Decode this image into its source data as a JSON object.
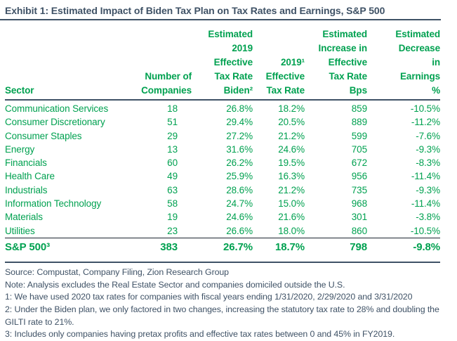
{
  "title": "Exhibit 1: Estimated Impact of Biden Tax Plan on Tax Rates and Earnings, S&P 500",
  "colors": {
    "accent_green": "#00A150",
    "navy": "#3F5266",
    "dark_divider": "#1c2430",
    "background": "#ffffff"
  },
  "table": {
    "headers": [
      "Sector",
      "Number of\nCompanies",
      "Estimated\n2019\nEffective\nTax Rate\nBiden²",
      "2019¹\nEffective\nTax Rate",
      "Estimated\nIncrease in\nEffective\nTax Rate\nBps",
      "Estimated\nDecrease\nin\nEarnings\n%"
    ],
    "rows": [
      [
        "Communication Services",
        "18",
        "26.8%",
        "18.2%",
        "859",
        "-10.5%"
      ],
      [
        "Consumer Discretionary",
        "51",
        "29.4%",
        "20.5%",
        "889",
        "-11.2%"
      ],
      [
        "Consumer Staples",
        "29",
        "27.2%",
        "21.2%",
        "599",
        "-7.6%"
      ],
      [
        "Energy",
        "13",
        "31.6%",
        "24.6%",
        "705",
        "-9.3%"
      ],
      [
        "Financials",
        "60",
        "26.2%",
        "19.5%",
        "672",
        "-8.3%"
      ],
      [
        "Health Care",
        "49",
        "25.9%",
        "16.3%",
        "956",
        "-11.4%"
      ],
      [
        "Industrials",
        "63",
        "28.6%",
        "21.2%",
        "735",
        "-9.3%"
      ],
      [
        "Information Technology",
        "58",
        "24.7%",
        "15.0%",
        "968",
        "-11.4%"
      ],
      [
        "Materials",
        "19",
        "24.6%",
        "21.6%",
        "301",
        "-3.8%"
      ],
      [
        "Utilities",
        "23",
        "26.6%",
        "18.0%",
        "860",
        "-10.5%"
      ]
    ],
    "total_row": [
      "S&P 500³",
      "383",
      "26.7%",
      "18.7%",
      "798",
      "-9.8%"
    ]
  },
  "notes": [
    "Source: Compustat, Company Filing, Zion Research Group",
    "Note: Analysis excludes the Real Estate Sector and companies domiciled outside the U.S.",
    "1: We have used 2020 tax rates for companies with fiscal years ending 1/31/2020, 2/29/2020 and 3/31/2020",
    "2: Under the Biden plan, we only factored in two changes, increasing the statutory tax rate to 28% and doubling the GILTI rate to 21%.",
    "3: Includes only companies having pretax profits and effective tax rates between 0 and 45% in FY2019."
  ]
}
